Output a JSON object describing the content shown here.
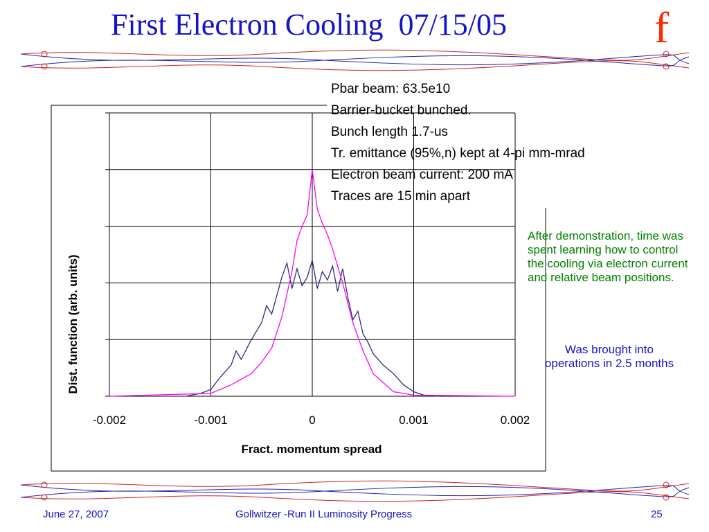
{
  "slide": {
    "title": "First Electron Cooling  07/15/05",
    "logo_letter": "f"
  },
  "annotations": [
    "Pbar beam: 63.5e10",
    "Barrier-bucket bunched.",
    "Bunch length 1.7-us",
    "Tr. emittance (95%,n) kept at 4-pi mm-mrad",
    "Electron beam current: 200 mA",
    "Traces are 15 min apart"
  ],
  "notes": {
    "green": "After demonstration, time was spent learning how to control the cooling via electron current and relative beam positions.",
    "blue": "Was brought into operations in 2.5 months"
  },
  "footer": {
    "date": "June 27, 2007",
    "center": "Gollwitzer -Run II Luminosity Progress",
    "page": "25"
  },
  "colors": {
    "title": "#1414c8",
    "logo": "#ff2a00",
    "note_green": "#008000",
    "series_blue": "#2b2b80",
    "series_magenta": "#ff00ff",
    "rule_red": "#cc2222",
    "rule_blue": "#2222aa"
  },
  "chart_data": {
    "type": "line",
    "xlabel": "Fract. momentum spread",
    "ylabel": "Dist. function (arb. units)",
    "xlim": [
      -0.002,
      0.002
    ],
    "ylim": [
      0,
      5
    ],
    "xticks": [
      "-0.002",
      "-0.001",
      "0",
      "0.001",
      "0.002"
    ],
    "grid": true,
    "series": [
      {
        "color": "#2b2b80",
        "x": [
          -0.00125,
          -0.0011,
          -0.001,
          -0.0009,
          -0.0008,
          -0.00075,
          -0.0007,
          -0.0006,
          -0.0005,
          -0.00045,
          -0.0004,
          -0.0003,
          -0.00025,
          -0.0002,
          -0.00015,
          -0.0001,
          -5e-05,
          0,
          5e-05,
          0.0001,
          0.00015,
          0.0002,
          0.00025,
          0.0003,
          0.00035,
          0.0004,
          0.00045,
          0.0005,
          0.00055,
          0.0006,
          0.0007,
          0.0008,
          0.0009,
          0.001,
          0.0011,
          0.00125
        ],
        "y": [
          0,
          0.05,
          0.12,
          0.35,
          0.55,
          0.8,
          0.65,
          1.0,
          1.3,
          1.6,
          1.45,
          2.1,
          2.35,
          1.9,
          2.25,
          1.95,
          2.1,
          2.4,
          1.9,
          2.2,
          2.05,
          2.3,
          1.85,
          2.25,
          1.75,
          1.35,
          1.5,
          1.1,
          0.95,
          0.75,
          0.55,
          0.4,
          0.2,
          0.08,
          0.02,
          0
        ]
      },
      {
        "color": "#ff00ff",
        "x": [
          -0.002,
          -0.001,
          -0.0008,
          -0.0006,
          -0.0005,
          -0.0004,
          -0.0003,
          -0.0002,
          -0.00015,
          -0.0001,
          -5e-05,
          0,
          5e-05,
          0.0001,
          0.00015,
          0.0002,
          0.0003,
          0.0004,
          0.0005,
          0.0006,
          0.0008,
          0.001,
          0.002
        ],
        "y": [
          0,
          0.05,
          0.2,
          0.4,
          0.6,
          0.85,
          1.4,
          2.2,
          2.75,
          3.0,
          3.2,
          4.0,
          3.3,
          3.05,
          2.85,
          2.6,
          2.0,
          1.3,
          0.8,
          0.4,
          0.08,
          0.02,
          0
        ]
      }
    ]
  }
}
